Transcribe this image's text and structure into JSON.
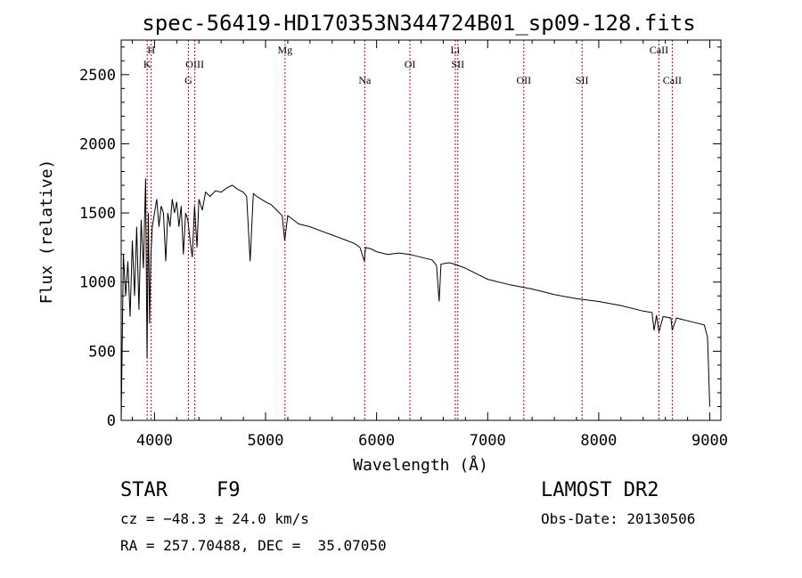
{
  "chart_data": {
    "type": "line",
    "title": "spec-56419-HD170353N344724B01_sp09-128.fits",
    "xlabel": "Wavelength (Å)",
    "ylabel": "Flux (relative)",
    "xlim": [
      3700,
      9100
    ],
    "ylim": [
      0,
      2750
    ],
    "xticks": [
      4000,
      5000,
      6000,
      7000,
      8000,
      9000
    ],
    "yticks": [
      0,
      500,
      1000,
      1500,
      2000,
      2500
    ],
    "grid": false,
    "line_color": "#000000",
    "marker_color": "#c00000",
    "series": [
      {
        "x": [
          3700,
          3720,
          3740,
          3760,
          3780,
          3800,
          3820,
          3840,
          3860,
          3880,
          3900,
          3920,
          3933,
          3945,
          3955,
          3968,
          3980,
          4000,
          4020,
          4040,
          4060,
          4080,
          4101,
          4120,
          4140,
          4160,
          4180,
          4200,
          4220,
          4240,
          4260,
          4280,
          4300,
          4320,
          4340,
          4360,
          4383,
          4400,
          4430,
          4460,
          4500,
          4550,
          4600,
          4650,
          4700,
          4750,
          4800,
          4830,
          4861,
          4890,
          4920,
          4960,
          5000,
          5050,
          5100,
          5150,
          5172,
          5200,
          5250,
          5300,
          5400,
          5500,
          5600,
          5700,
          5800,
          5850,
          5890,
          5900,
          5950,
          6000,
          6100,
          6200,
          6300,
          6400,
          6500,
          6540,
          6563,
          6580,
          6650,
          6700,
          6800,
          6900,
          7000,
          7200,
          7400,
          7600,
          7800,
          8000,
          8200,
          8400,
          8480,
          8498,
          8520,
          8542,
          8580,
          8650,
          8662,
          8700,
          8800,
          8900,
          8950,
          8980,
          9000
        ],
        "y": [
          0,
          1200,
          900,
          1150,
          750,
          1300,
          900,
          1400,
          800,
          1450,
          1100,
          1750,
          450,
          1500,
          700,
          1200,
          1400,
          1500,
          1600,
          1400,
          1550,
          1500,
          1150,
          1500,
          1400,
          1600,
          1500,
          1580,
          1400,
          1550,
          1200,
          1500,
          1450,
          1300,
          1180,
          1550,
          1250,
          1600,
          1520,
          1650,
          1620,
          1660,
          1650,
          1680,
          1700,
          1670,
          1650,
          1620,
          1150,
          1640,
          1620,
          1600,
          1580,
          1560,
          1520,
          1480,
          1300,
          1480,
          1450,
          1420,
          1400,
          1370,
          1340,
          1310,
          1280,
          1250,
          1150,
          1250,
          1240,
          1220,
          1200,
          1210,
          1200,
          1180,
          1160,
          1120,
          860,
          1130,
          1140,
          1130,
          1100,
          1060,
          1020,
          980,
          950,
          910,
          880,
          860,
          830,
          790,
          780,
          650,
          760,
          640,
          750,
          740,
          650,
          740,
          720,
          700,
          690,
          600,
          100
        ]
      }
    ],
    "line_markers": [
      {
        "label": "H",
        "x": 3970,
        "row": 1
      },
      {
        "label": "K",
        "x": 3934,
        "row": 2
      },
      {
        "label": "OIII",
        "x": 4363,
        "row": 2
      },
      {
        "label": "G",
        "x": 4305,
        "row": 3
      },
      {
        "label": "Mg",
        "x": 5175,
        "row": 1
      },
      {
        "label": "Na",
        "x": 5893,
        "row": 3
      },
      {
        "label": "OI",
        "x": 6300,
        "row": 2
      },
      {
        "label": "Li",
        "x": 6708,
        "row": 1
      },
      {
        "label": "SII",
        "x": 6731,
        "row": 2
      },
      {
        "label": "OII",
        "x": 7325,
        "row": 3
      },
      {
        "label": "SII",
        "x": 7850,
        "row": 3
      },
      {
        "label": "CaII",
        "x": 8542,
        "row": 1
      },
      {
        "label": "CaII",
        "x": 8662,
        "row": 3
      }
    ]
  },
  "info": {
    "object_class": "STAR",
    "subclass": "F9",
    "survey": "LAMOST DR2",
    "redshift": "cz = −48.3 ± 24.0 km/s",
    "obs_date": "Obs-Date: 20130506",
    "coords": "RA = 257.70488, DEC =  35.07050"
  }
}
